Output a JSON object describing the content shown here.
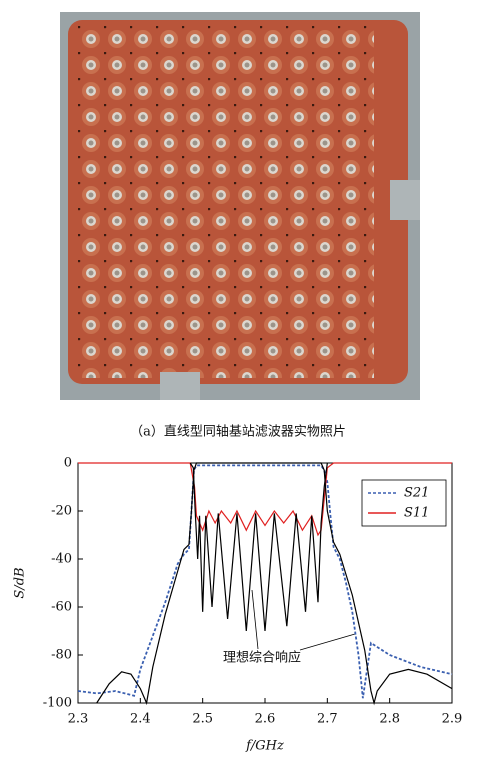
{
  "photo_caption": "（a）直线型同轴基站滤波器实物照片",
  "chart_data": {
    "type": "line",
    "xlabel": "f/GHz",
    "ylabel": "S/dB",
    "annotation": "理想综合响应",
    "xlim": [
      2.3,
      2.9
    ],
    "xticks": [
      2.3,
      2.4,
      2.5,
      2.6,
      2.7,
      2.8,
      2.9
    ],
    "ylim": [
      -100,
      0
    ],
    "yticks": [
      -100,
      -80,
      -60,
      -40,
      -20,
      0
    ],
    "legend": "upper right",
    "series": [
      {
        "name": "S21",
        "color": "#3a5fb0",
        "line_style": "dashed",
        "x": [
          2.3,
          2.33,
          2.36,
          2.39,
          2.4,
          2.42,
          2.44,
          2.46,
          2.47,
          2.478,
          2.482,
          2.486,
          2.49,
          2.6,
          2.69,
          2.695,
          2.7,
          2.705,
          2.71,
          2.72,
          2.73,
          2.74,
          2.75,
          2.757,
          2.77,
          2.8,
          2.85,
          2.9
        ],
        "values": [
          -95,
          -96,
          -95,
          -97,
          -86,
          -72,
          -58,
          -42,
          -38,
          -36,
          -20,
          -3,
          -1,
          -1,
          -1,
          -3,
          -8,
          -22,
          -35,
          -40,
          -50,
          -62,
          -80,
          -98,
          -75,
          -80,
          -85,
          -88
        ]
      },
      {
        "name": "S11",
        "color": "#e02020",
        "line_style": "solid",
        "x": [
          2.3,
          2.48,
          2.487,
          2.49,
          2.5,
          2.51,
          2.52,
          2.53,
          2.545,
          2.555,
          2.57,
          2.585,
          2.6,
          2.615,
          2.63,
          2.645,
          2.66,
          2.675,
          2.685,
          2.69,
          2.695,
          2.7,
          2.71,
          2.9
        ],
        "values": [
          0,
          0,
          -10,
          -22,
          -28,
          -20,
          -25,
          -20,
          -25,
          -20,
          -28,
          -20,
          -26,
          -20,
          -25,
          -20,
          -28,
          -22,
          -30,
          -28,
          -15,
          -2,
          0,
          0
        ]
      },
      {
        "color": "#000000",
        "line_style": "solid",
        "x": [
          2.33,
          2.35,
          2.37,
          2.385,
          2.4,
          2.41,
          2.42,
          2.44,
          2.46,
          2.47,
          2.478,
          2.482,
          2.486,
          2.49,
          2.69,
          2.695,
          2.7,
          2.71,
          2.72,
          2.74,
          2.76,
          2.77,
          2.775,
          2.78,
          2.8,
          2.83,
          2.86,
          2.9
        ],
        "values": [
          -100,
          -92,
          -87,
          -88,
          -94,
          -100,
          -85,
          -63,
          -45,
          -36,
          -34,
          -20,
          -3,
          0,
          0,
          -3,
          -20,
          -33,
          -38,
          -55,
          -78,
          -95,
          -100,
          -95,
          -88,
          -86,
          -88,
          -94
        ]
      },
      {
        "color": "#000000",
        "line_style": "solid",
        "x": [
          2.48,
          2.485,
          2.488,
          2.492,
          2.495,
          2.5,
          2.505,
          2.515,
          2.525,
          2.54,
          2.555,
          2.57,
          2.585,
          2.6,
          2.615,
          2.635,
          2.65,
          2.665,
          2.675,
          2.685,
          2.69,
          2.695,
          2.7
        ],
        "values": [
          0,
          -2,
          -20,
          -40,
          -22,
          -62,
          -22,
          -60,
          -21,
          -65,
          -21,
          -70,
          -21,
          -70,
          -21,
          -68,
          -21,
          -62,
          -22,
          -58,
          -25,
          -10,
          0
        ]
      }
    ]
  }
}
